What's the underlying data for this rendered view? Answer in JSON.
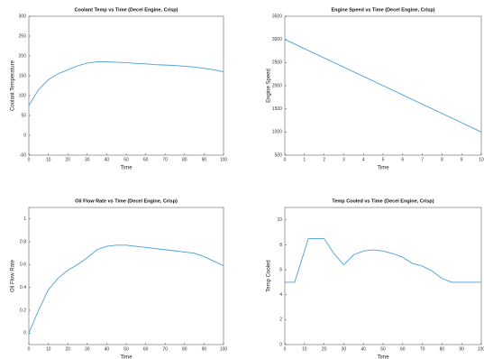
{
  "chart_data": [
    {
      "type": "line",
      "title": "Coolant Temp vs Time (Decel Engine, Crisp)",
      "xlabel": "Time",
      "ylabel": "Coolant Temperature",
      "x": [
        0,
        5,
        10,
        15,
        20,
        25,
        30,
        35,
        40,
        45,
        50,
        55,
        60,
        65,
        70,
        75,
        80,
        85,
        90,
        95,
        100
      ],
      "values": [
        75,
        115,
        140,
        155,
        165,
        175,
        182,
        185,
        185,
        184,
        183,
        181,
        180,
        178,
        177,
        176,
        174,
        172,
        169,
        165,
        160
      ],
      "color": "#4a9fd8",
      "xlim": [
        0,
        100
      ],
      "ylim": [
        -50,
        300
      ],
      "xticks": [
        0,
        10,
        20,
        30,
        40,
        50,
        60,
        70,
        80,
        90,
        100
      ],
      "yticks": [
        -50,
        0,
        50,
        100,
        150,
        200,
        250,
        300
      ]
    },
    {
      "type": "line",
      "title": "Engine Speed vs Time (Decel Engine, Crisp)",
      "xlabel": "Time",
      "ylabel": "Engine Speed",
      "x": [
        0,
        10
      ],
      "values": [
        3000,
        1000
      ],
      "color": "#4a9fd8",
      "xlim": [
        0,
        10
      ],
      "ylim": [
        500,
        3500
      ],
      "xticks": [
        0,
        1,
        2,
        3,
        4,
        5,
        6,
        7,
        8,
        9,
        10
      ],
      "yticks": [
        500,
        1000,
        1500,
        2000,
        2500,
        3000,
        3500
      ]
    },
    {
      "type": "line",
      "title": "Oil Flow Rate vs Time (Decel Engine, Crisp)",
      "xlabel": "Time",
      "ylabel": "Oil Flow Rate",
      "x": [
        0,
        5,
        10,
        15,
        20,
        25,
        30,
        35,
        40,
        45,
        50,
        55,
        60,
        65,
        70,
        75,
        80,
        85,
        90,
        95,
        100
      ],
      "values": [
        0,
        0.2,
        0.38,
        0.48,
        0.55,
        0.6,
        0.66,
        0.73,
        0.76,
        0.77,
        0.77,
        0.76,
        0.75,
        0.74,
        0.73,
        0.72,
        0.71,
        0.7,
        0.67,
        0.63,
        0.59
      ],
      "color": "#4a9fd8",
      "xlim": [
        0,
        100
      ],
      "ylim": [
        -0.1,
        1.1
      ],
      "xticks": [
        0,
        10,
        20,
        30,
        40,
        50,
        60,
        70,
        80,
        90,
        100
      ],
      "yticks": [
        0,
        0.2,
        0.4,
        0.6,
        0.8,
        1
      ]
    },
    {
      "type": "line",
      "title": "Temp Cooled vs Time (Decel Engine, Crisp)",
      "xlabel": "Time",
      "ylabel": "Temp Cooled",
      "x": [
        0,
        5,
        8,
        12,
        20,
        25,
        30,
        35,
        40,
        45,
        50,
        55,
        60,
        65,
        70,
        75,
        80,
        85,
        90,
        95,
        100
      ],
      "values": [
        5,
        5,
        6.5,
        8.5,
        8.5,
        7.3,
        6.4,
        7.2,
        7.5,
        7.6,
        7.5,
        7.3,
        7,
        6.5,
        6.3,
        5.9,
        5.3,
        5,
        5,
        5,
        5
      ],
      "color": "#4a9fd8",
      "xlim": [
        0,
        100
      ],
      "ylim": [
        0,
        11
      ],
      "xticks": [
        0,
        10,
        20,
        30,
        40,
        50,
        60,
        70,
        80,
        90,
        100
      ],
      "yticks": [
        0,
        2,
        4,
        6,
        8,
        10
      ]
    }
  ]
}
